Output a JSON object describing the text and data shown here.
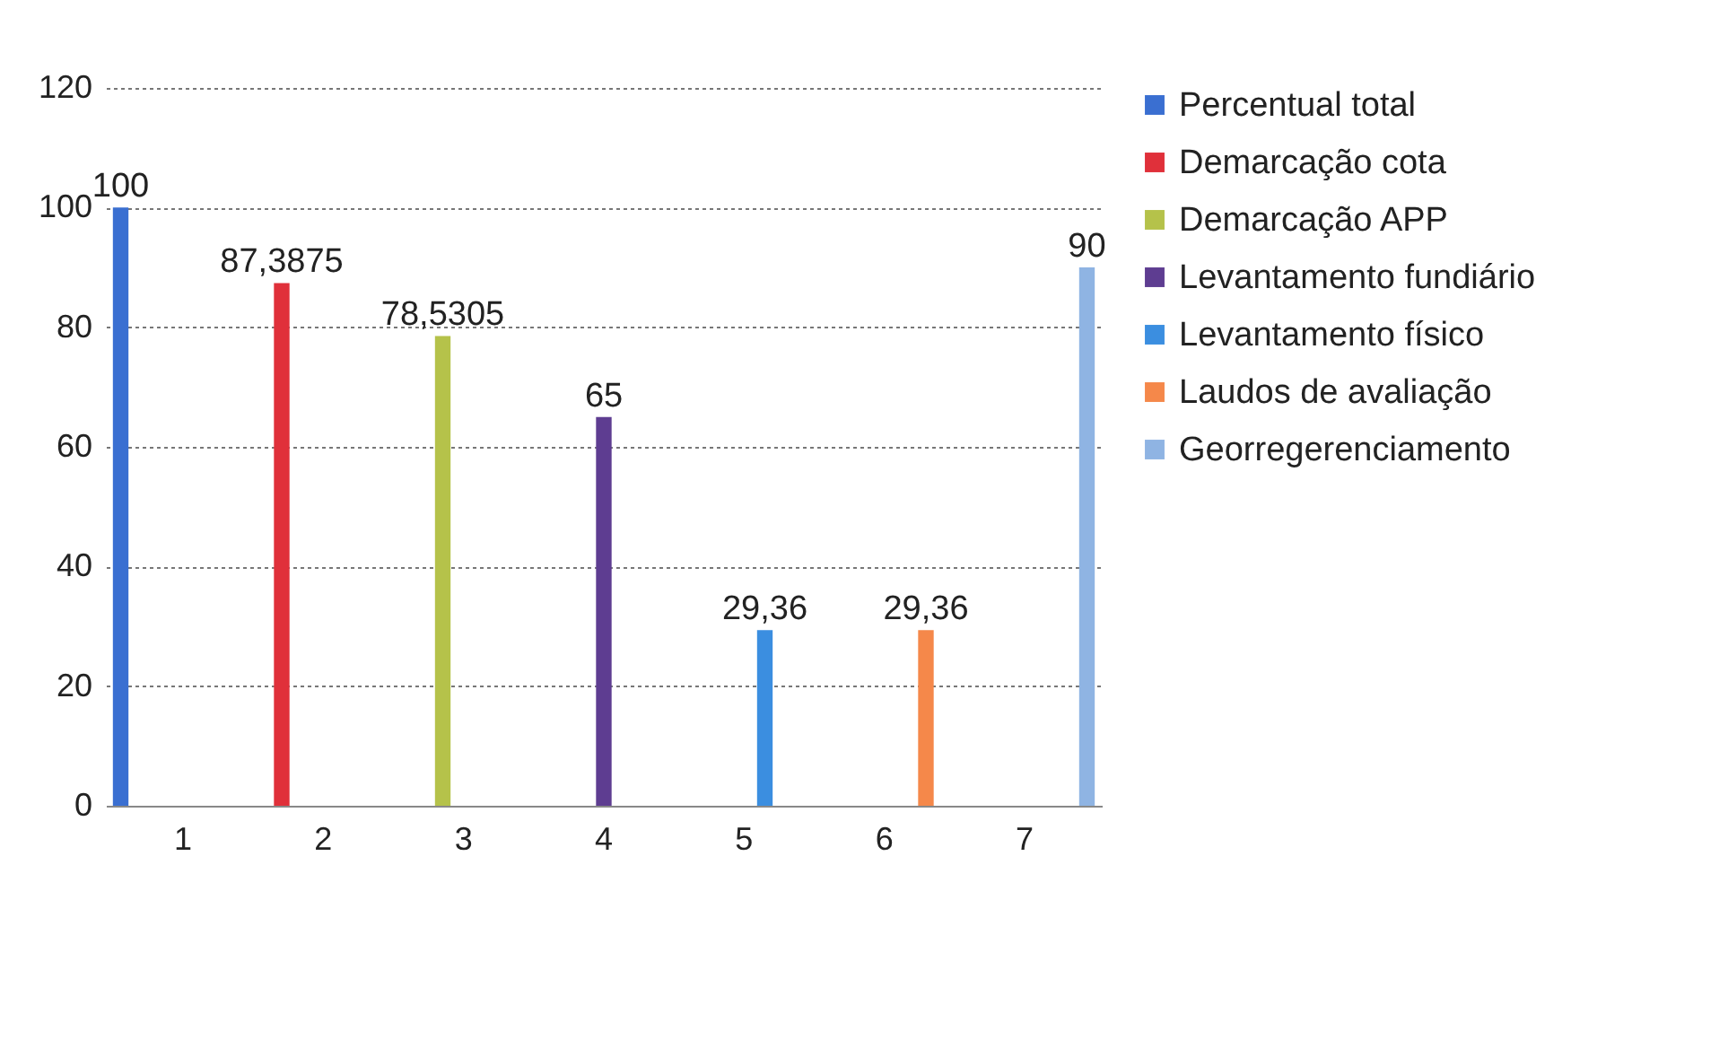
{
  "chart_data": {
    "type": "bar",
    "categories": [
      "1",
      "2",
      "3",
      "4",
      "5",
      "6",
      "7"
    ],
    "series": [
      {
        "name": "Percentual total",
        "color": "#3a6fd1",
        "values": [
          100,
          null,
          null,
          null,
          null,
          null,
          null
        ],
        "value_labels": [
          "100",
          null,
          null,
          null,
          null,
          null,
          null
        ]
      },
      {
        "name": "Demarcação cota",
        "color": "#e0303a",
        "values": [
          null,
          87.3875,
          null,
          null,
          null,
          null,
          null
        ],
        "value_labels": [
          null,
          "87,3875",
          null,
          null,
          null,
          null,
          null
        ]
      },
      {
        "name": "Demarcação APP",
        "color": "#b5c24a",
        "values": [
          null,
          null,
          78.5305,
          null,
          null,
          null,
          null
        ],
        "value_labels": [
          null,
          null,
          "78,5305",
          null,
          null,
          null,
          null
        ]
      },
      {
        "name": "Levantamento fundiário",
        "color": "#5e3d91",
        "values": [
          null,
          null,
          null,
          65,
          null,
          null,
          null
        ],
        "value_labels": [
          null,
          null,
          null,
          "65",
          null,
          null,
          null
        ]
      },
      {
        "name": "Levantamento físico",
        "color": "#3b8ee0",
        "values": [
          null,
          null,
          null,
          null,
          29.36,
          null,
          null
        ],
        "value_labels": [
          null,
          null,
          null,
          null,
          "29,36",
          null,
          null
        ]
      },
      {
        "name": "Laudos de avaliação",
        "color": "#f5884a",
        "values": [
          null,
          null,
          null,
          null,
          null,
          29.36,
          null
        ],
        "value_labels": [
          null,
          null,
          null,
          null,
          null,
          "29,36",
          null
        ]
      },
      {
        "name": "Georregerenciamento",
        "color": "#8fb4e3",
        "values": [
          null,
          null,
          null,
          null,
          null,
          null,
          90
        ],
        "value_labels": [
          null,
          null,
          null,
          null,
          null,
          null,
          "90"
        ]
      }
    ],
    "ylim": [
      0,
      120
    ],
    "yticks": [
      0,
      20,
      40,
      60,
      80,
      100,
      120
    ],
    "grid": "y",
    "legend": "right"
  }
}
